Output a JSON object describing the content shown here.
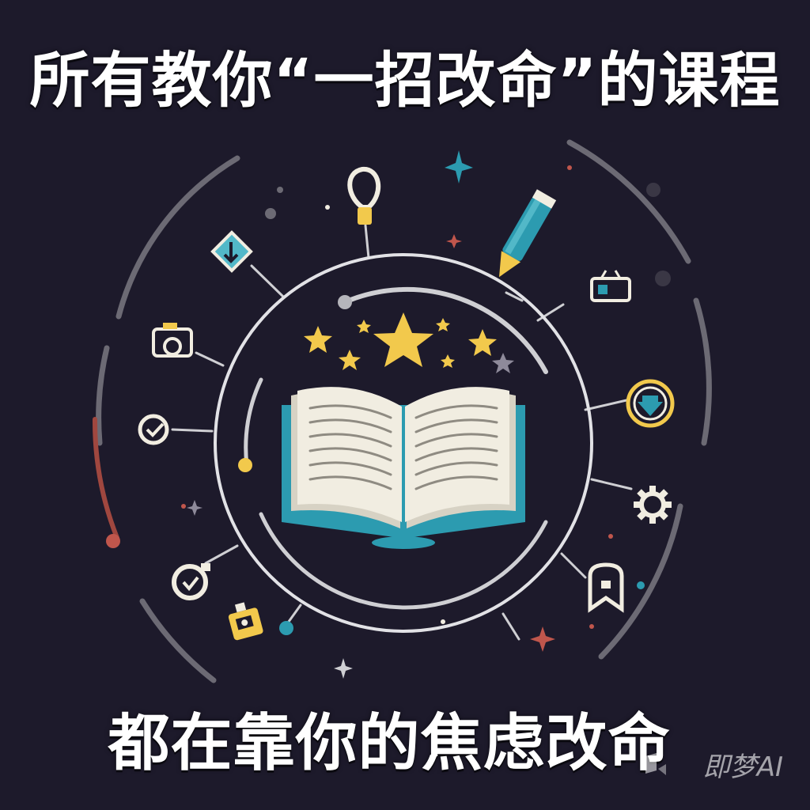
{
  "headline": {
    "top": "所有教你“一招改命”的课程",
    "bottom": "都在靠你的焦虑改命"
  },
  "watermark": {
    "text": "即梦AI"
  },
  "colors": {
    "background": "#1d1a2b",
    "ring": "#dcdcdc",
    "star_gold": "#f2c94c",
    "book_teal": "#2c9bb0",
    "page_cream": "#f1ede1",
    "accent_red": "#c0564c"
  },
  "icons": [
    "lightbulb-icon",
    "pencil-icon",
    "diamond-arrow-icon",
    "camera-icon",
    "checkmark-badge-icon",
    "download-icon",
    "gear-icon",
    "shield-icon",
    "check-bulb-icon",
    "robot-icon",
    "open-book-icon",
    "star-icon"
  ]
}
